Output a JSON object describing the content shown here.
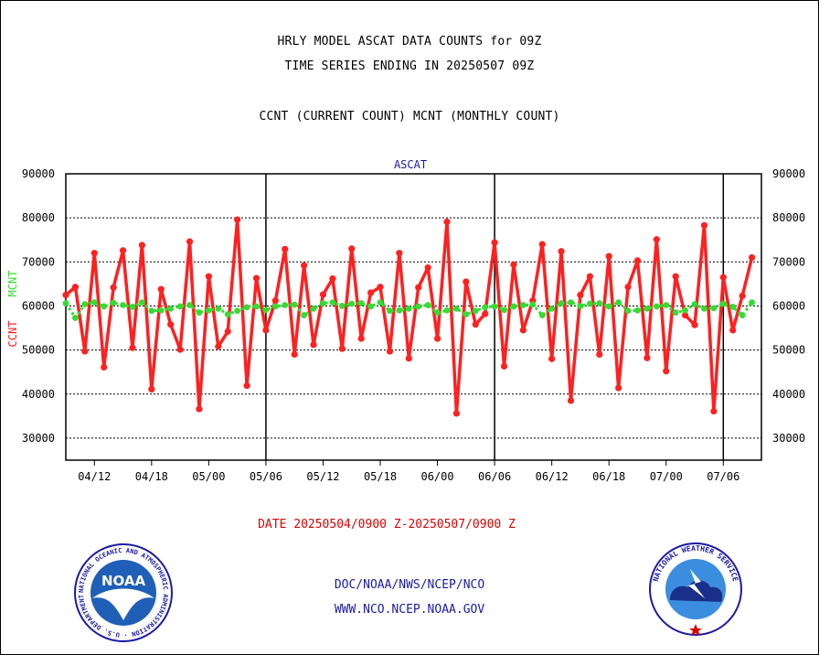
{
  "header": {
    "title_line1": "HRLY MODEL ASCAT DATA COUNTS for 09Z",
    "title_line2": "TIME SERIES ENDING IN 20250507 09Z",
    "title_line3": "CCNT (CURRENT COUNT) MCNT (MONTHLY COUNT)"
  },
  "date_range": "DATE 20250504/0900 Z-20250507/0900 Z",
  "footer": {
    "line1": "DOC/NOAA/NWS/NCEP/NCO",
    "line2": "WWW.NCO.NCEP.NOAA.GOV"
  },
  "logos": {
    "noaa": {
      "name": "NOAA",
      "ring_text": "NATIONAL OCEANIC AND ATMOSPHERIC ADMINISTRATION · U.S. DEPARTMENT OF COMMERCE"
    },
    "nws": {
      "ring_text": "NATIONAL WEATHER SERVICE"
    }
  },
  "colors": {
    "ccnt": "#ff2020",
    "mcnt": "#33dd33",
    "chart_title": "#1a1aa8",
    "date_text": "#e00000"
  },
  "chart_data": {
    "type": "line",
    "title": "ASCAT",
    "ylabel_ccnt": "CCNT",
    "ylabel_mcnt": "MCNT",
    "ylim": [
      25000,
      90000
    ],
    "yticks": [
      "30000",
      "40000",
      "50000",
      "60000",
      "70000",
      "80000",
      "90000"
    ],
    "ytick_values": [
      30000,
      40000,
      50000,
      60000,
      70000,
      80000,
      90000
    ],
    "xlim": [
      0,
      73
    ],
    "xticks": [
      {
        "label": "04/12",
        "x": 3
      },
      {
        "label": "04/18",
        "x": 9
      },
      {
        "label": "05/00",
        "x": 15
      },
      {
        "label": "05/06",
        "x": 21
      },
      {
        "label": "05/12",
        "x": 27
      },
      {
        "label": "05/18",
        "x": 33
      },
      {
        "label": "06/00",
        "x": 39
      },
      {
        "label": "06/06",
        "x": 45
      },
      {
        "label": "06/12",
        "x": 51
      },
      {
        "label": "06/18",
        "x": 57
      },
      {
        "label": "07/00",
        "x": 63
      },
      {
        "label": "07/06",
        "x": 69
      }
    ],
    "vlines": [
      21,
      45,
      69
    ],
    "grid": "horizontal dotted",
    "series": [
      {
        "name": "CCNT",
        "values": [
          62500,
          64300,
          49700,
          72000,
          46100,
          64200,
          72600,
          50500,
          73800,
          41100,
          63800,
          55800,
          50100,
          74600,
          36600,
          66700,
          50800,
          54200,
          79600,
          41900,
          66300,
          54500,
          61200,
          72900,
          49000,
          69200,
          51200,
          62600,
          66200,
          50300,
          73000,
          52600,
          63000,
          64300,
          49700,
          72000,
          48100,
          64200,
          68700,
          52600,
          79100,
          35600,
          65500,
          55800,
          58200,
          74400,
          46300,
          69400,
          54500,
          61200,
          74000,
          48000,
          72400,
          38500,
          62500,
          66700,
          49000,
          71300,
          41400,
          64300,
          70300,
          48200,
          75100,
          45200,
          66700,
          57900,
          55700,
          78300,
          36100,
          66500,
          54500,
          62300,
          71000
        ]
      },
      {
        "name": "MCNT",
        "values": [
          60600,
          57300,
          60400,
          60800,
          59900,
          60700,
          60200,
          59800,
          60800,
          58900,
          59000,
          59400,
          59900,
          60200,
          58500,
          59000,
          59400,
          58100,
          58900,
          59700,
          59900,
          59100,
          59900,
          60200,
          60300,
          57900,
          59400,
          60600,
          60800,
          60000,
          60500,
          60600,
          59900,
          60800,
          58900,
          59000,
          59400,
          59900,
          60200,
          58500,
          59000,
          59400,
          58100,
          58900,
          59700,
          59900,
          59100,
          59900,
          60200,
          60300,
          57900,
          59400,
          60600,
          60800,
          60000,
          60500,
          60600,
          59900,
          60800,
          58900,
          59000,
          59400,
          59900,
          60200,
          58500,
          59000,
          60400,
          59400,
          59500,
          60500,
          59800,
          57900,
          60800
        ]
      }
    ]
  }
}
